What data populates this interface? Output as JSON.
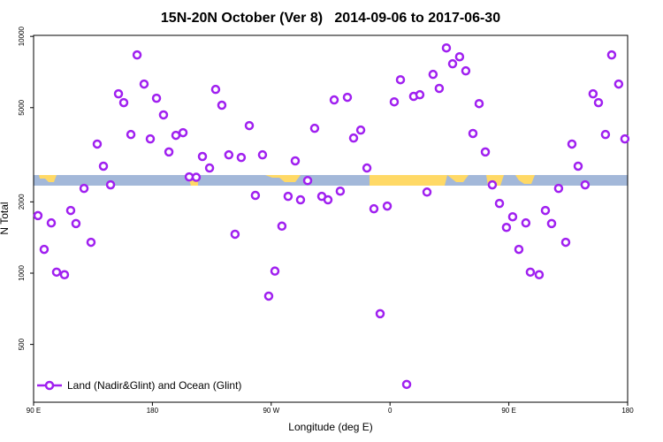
{
  "chart_data": {
    "type": "scatter",
    "title": "15N-20N October (Ver 8)   2014-09-06 to 2017-06-30",
    "xlabel": "Longitude (deg E)",
    "ylabel": "N Total",
    "yscale": "log",
    "grid": false,
    "legend_loc": "lower left",
    "xlim": [
      90,
      540
    ],
    "ylim": [
      285,
      10100
    ],
    "xticks": [
      {
        "value": 90,
        "label": "90 E"
      },
      180,
      {
        "value": 270,
        "label": "90 W"
      },
      {
        "value": 360,
        "label": "0"
      },
      {
        "value": 450,
        "label": "90 E"
      },
      {
        "value": 540,
        "label": "180"
      }
    ],
    "yticks": [
      500,
      1000,
      2000,
      5000,
      10000
    ],
    "x": [
      93.3,
      98,
      103.4,
      107.4,
      113.4,
      118.1,
      122.1,
      128.2,
      133.5,
      138.2,
      142.9,
      148.3,
      154.3,
      158.3,
      163.7,
      168.4,
      173.7,
      178.4,
      183.1,
      188.4,
      192.5,
      197.8,
      203.2,
      207.9,
      213.2,
      217.9,
      223.3,
      227.9,
      232.6,
      237.9,
      242.6,
      247.3,
      253.4,
      258,
      263.4,
      268.1,
      272.8,
      278.1,
      282.8,
      288.2,
      292.2,
      297.6,
      302.9,
      308.3,
      313,
      317.7,
      322.3,
      327.7,
      332.4,
      337.8,
      342.5,
      347.8,
      352.5,
      357.9,
      363.2,
      367.9,
      372.6,
      377.9,
      382.6,
      388,
      392.6,
      397.3,
      402.7,
      407.4,
      412.7,
      417.4,
      422.8,
      427.5,
      432.2,
      437.5,
      442.9,
      448.2,
      452.9,
      457.6,
      462.9,
      466.3,
      473,
      477.7,
      482.4,
      487.7,
      493.1,
      497.8,
      502.5,
      507.8,
      513.8,
      517.9,
      523.2,
      527.9,
      533.2,
      537.9
    ],
    "series": [
      {
        "name": "Land (Nadir&Glint) and Ocean (Glint)",
        "color": "#a020f0",
        "values": [
          1750,
          1260,
          1630,
          1010,
          985,
          1840,
          1620,
          2280,
          1350,
          3510,
          2830,
          2360,
          5720,
          5250,
          3850,
          8350,
          6290,
          3690,
          5480,
          4660,
          3250,
          3820,
          3920,
          2550,
          2540,
          3110,
          2780,
          5970,
          5120,
          3160,
          1460,
          3080,
          4200,
          2130,
          3160,
          800,
          1020,
          1580,
          2110,
          2980,
          2040,
          2460,
          4090,
          2110,
          2040,
          5390,
          2220,
          5530,
          3720,
          4020,
          2780,
          1870,
          674,
          1920,
          5290,
          6560,
          339,
          5580,
          5670,
          2200,
          6910,
          6030,
          8940,
          7660,
          8200,
          7150,
          3890,
          5200,
          3250,
          2360,
          1970,
          1560,
          1730,
          1260,
          1630,
          1010,
          985,
          1840,
          1620,
          2280,
          1350,
          3510,
          2830,
          2360,
          5720,
          5250,
          3850,
          8350,
          6290,
          3690
        ]
      }
    ]
  }
}
